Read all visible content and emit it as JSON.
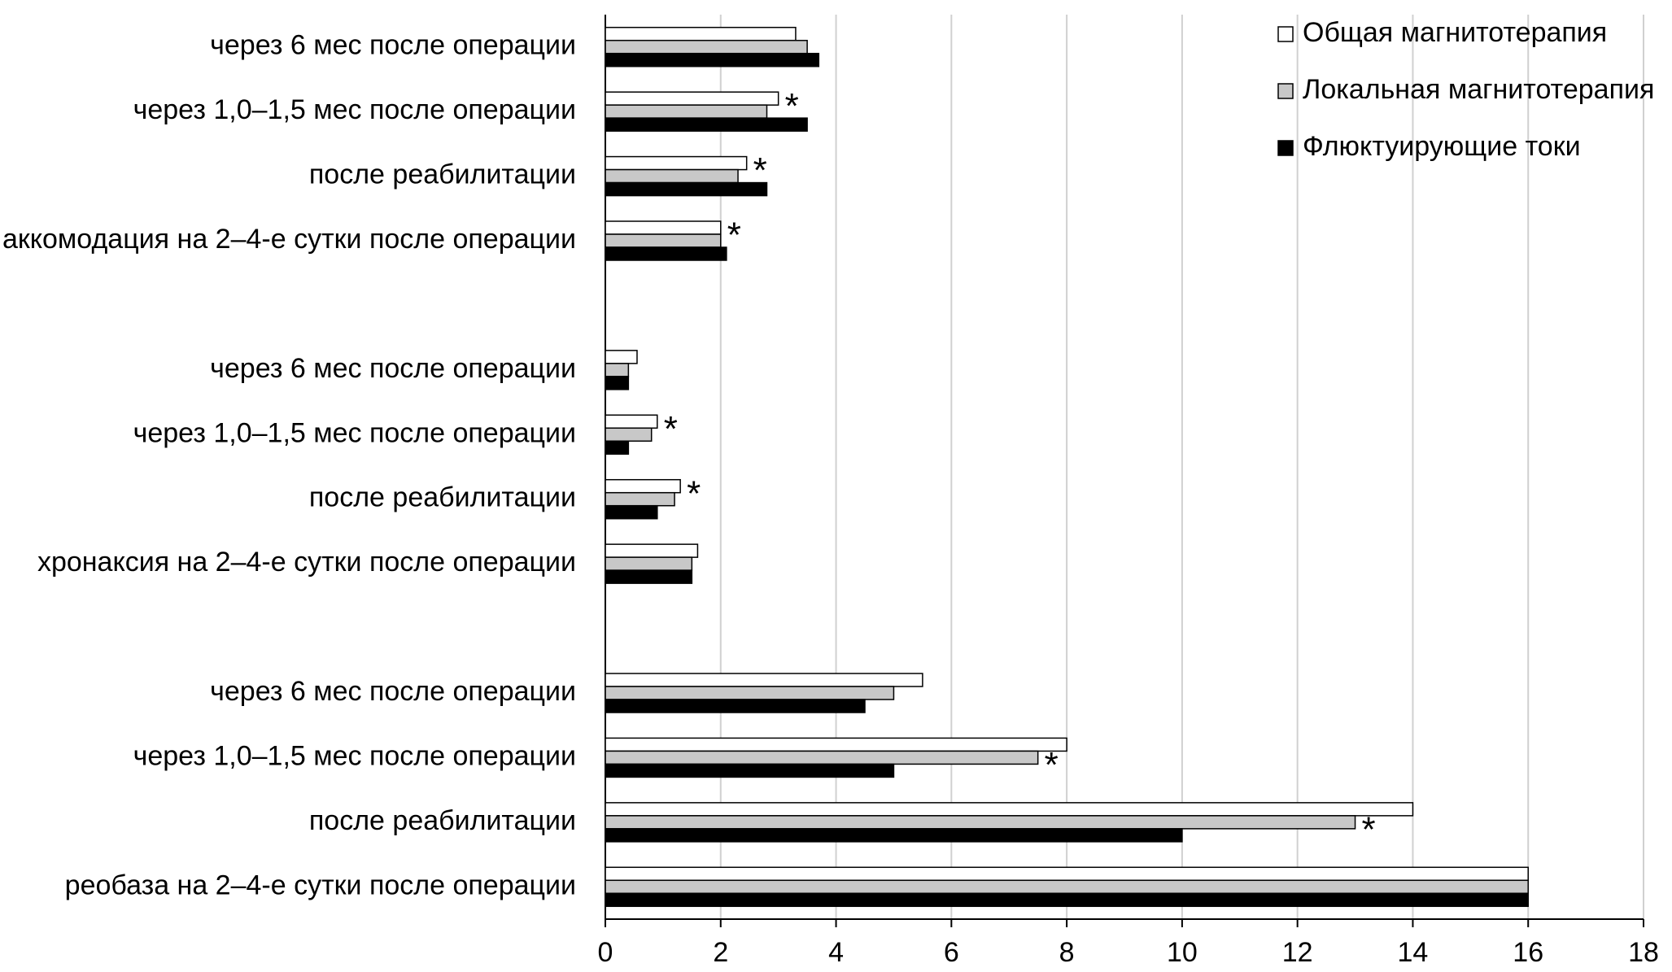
{
  "chart_data": {
    "type": "bar",
    "orientation": "horizontal",
    "categories": [
      "через 6 мес после операции",
      "через 1,0–1,5 мес после операции",
      "после реабилитации",
      "аккомодация на 2–4-е сутки после операции",
      null,
      "через 6 мес после операции",
      "через 1,0–1,5 мес после операции",
      "после реабилитации",
      "хронаксия на 2–4-е сутки после операции",
      null,
      "через 6 мес после операции",
      "через 1,0–1,5 мес после операции",
      "после реабилитации",
      "реобаза на 2–4-е сутки после операции"
    ],
    "series": [
      {
        "name": "Общая магнитотерапия",
        "color": "#ffffff",
        "values": [
          3.3,
          3.0,
          2.45,
          2.0,
          null,
          0.55,
          0.9,
          1.3,
          1.6,
          null,
          5.5,
          8.0,
          14.0,
          16.0
        ]
      },
      {
        "name": "Локальная магнитотерапия",
        "color": "#c8c8c8",
        "values": [
          3.5,
          2.8,
          2.3,
          2.0,
          null,
          0.4,
          0.8,
          1.2,
          1.5,
          null,
          5.0,
          7.5,
          13.0,
          16.0
        ]
      },
      {
        "name": "Флюктуирующие токи",
        "color": "#000000",
        "values": [
          3.7,
          3.5,
          2.8,
          2.1,
          null,
          0.4,
          0.4,
          0.9,
          1.5,
          null,
          4.5,
          5.0,
          10.0,
          16.0
        ]
      }
    ],
    "annotations": [
      {
        "text": "*",
        "category": 1,
        "series": 0
      },
      {
        "text": "*",
        "category": 2,
        "series": 0
      },
      {
        "text": "*",
        "category": 3,
        "series": 0
      },
      {
        "text": "*",
        "category": 6,
        "series": 0
      },
      {
        "text": "*",
        "category": 7,
        "series": 0
      },
      {
        "text": "*",
        "category": 11,
        "series": 1
      },
      {
        "text": "*",
        "category": 12,
        "series": 1
      }
    ],
    "xlim": [
      0,
      18
    ],
    "xticks": [
      0,
      2,
      4,
      6,
      8,
      10,
      12,
      14,
      16,
      18
    ],
    "grid": true,
    "legend": "top-right"
  }
}
